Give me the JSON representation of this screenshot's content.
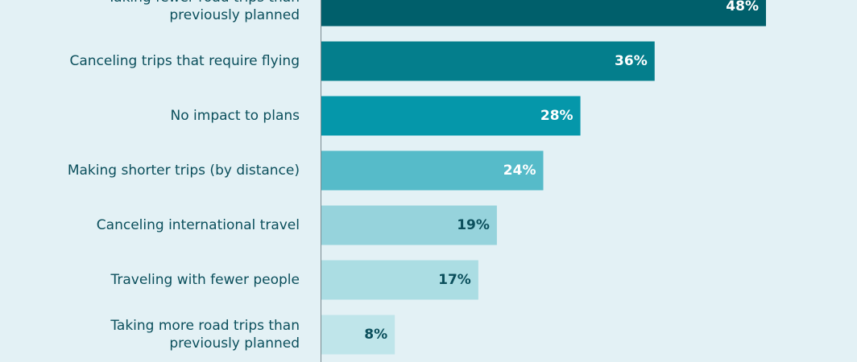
{
  "chart_data": {
    "type": "bar",
    "orientation": "horizontal",
    "categories": [
      [
        "Taking fewer road trips than",
        "previously planned"
      ],
      [
        "Canceling trips that require flying"
      ],
      [
        "No impact to plans"
      ],
      [
        "Making shorter trips (by distance)"
      ],
      [
        "Canceling international travel"
      ],
      [
        "Traveling with fewer people"
      ],
      [
        "Taking more road trips than",
        "previously planned"
      ]
    ],
    "values": [
      48,
      36,
      28,
      24,
      19,
      17,
      8
    ],
    "value_labels": [
      "48%",
      "36%",
      "28%",
      "24%",
      "19%",
      "17%",
      "8%"
    ],
    "bar_colors": [
      "#005f6b",
      "#047e8c",
      "#0597aa",
      "#56bbc9",
      "#96d3dc",
      "#abdde3",
      "#bfe5ea"
    ],
    "label_colors": [
      "#ffffff",
      "#ffffff",
      "#ffffff",
      "#ffffff",
      "#0b4f5c",
      "#0b4f5c",
      "#0b4f5c"
    ],
    "xlim": [
      0,
      100
    ],
    "grid": false,
    "legend": "none",
    "title": "",
    "xlabel": "",
    "ylabel": ""
  }
}
